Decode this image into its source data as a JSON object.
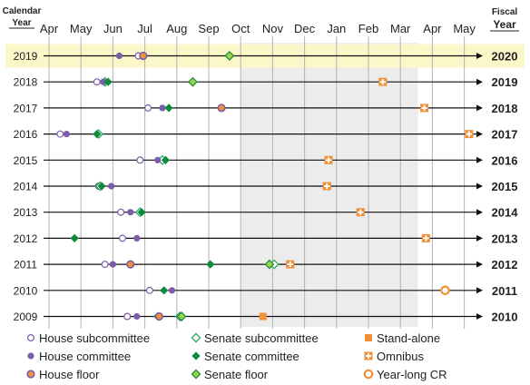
{
  "chart_data": {
    "type": "scatter",
    "left_header": [
      "Calendar",
      "Year"
    ],
    "right_header": [
      "Fiscal",
      "Year"
    ],
    "months": [
      "Apr",
      "May",
      "Jun",
      "Jul",
      "Aug",
      "Sep",
      "Oct",
      "Nov",
      "Dec",
      "Jan",
      "Feb",
      "Mar",
      "Apr",
      "May"
    ],
    "rows": [
      {
        "cal": "2019",
        "fy": "2020",
        "highlight": true
      },
      {
        "cal": "2018",
        "fy": "2019"
      },
      {
        "cal": "2017",
        "fy": "2018"
      },
      {
        "cal": "2016",
        "fy": "2017"
      },
      {
        "cal": "2015",
        "fy": "2016"
      },
      {
        "cal": "2014",
        "fy": "2015"
      },
      {
        "cal": "2013",
        "fy": "2014"
      },
      {
        "cal": "2012",
        "fy": "2013"
      },
      {
        "cal": "2011",
        "fy": "2012"
      },
      {
        "cal": "2010",
        "fy": "2011"
      },
      {
        "cal": "2009",
        "fy": "2010"
      }
    ],
    "series": [
      {
        "key": "hs",
        "name": "House subcommittee",
        "points": [
          {
            "row": "2019",
            "x": 2.8
          },
          {
            "row": "2018",
            "x": 1.5
          },
          {
            "row": "2017",
            "x": 3.1
          },
          {
            "row": "2016",
            "x": 0.35
          },
          {
            "row": "2015",
            "x": 2.85
          },
          {
            "row": "2014",
            "x": 1.55
          },
          {
            "row": "2013",
            "x": 2.25
          },
          {
            "row": "2012",
            "x": 2.3
          },
          {
            "row": "2011",
            "x": 1.75
          },
          {
            "row": "2010",
            "x": 3.15
          },
          {
            "row": "2009",
            "x": 2.45
          }
        ]
      },
      {
        "key": "ss",
        "name": "Senate subcommittee",
        "points": [
          {
            "row": "2018",
            "x": 1.75
          },
          {
            "row": "2016",
            "x": 1.55
          },
          {
            "row": "2015",
            "x": 3.55
          },
          {
            "row": "2014",
            "x": 1.6
          },
          {
            "row": "2013",
            "x": 2.85
          },
          {
            "row": "2011",
            "x": 7.05
          },
          {
            "row": "2009",
            "x": 4.1
          }
        ]
      },
      {
        "key": "hc",
        "name": "House committee",
        "points": [
          {
            "row": "2019",
            "x": 2.2
          },
          {
            "row": "2018",
            "x": 1.7
          },
          {
            "row": "2017",
            "x": 3.55
          },
          {
            "row": "2016",
            "x": 0.55
          },
          {
            "row": "2015",
            "x": 3.4
          },
          {
            "row": "2014",
            "x": 1.95
          },
          {
            "row": "2013",
            "x": 2.55
          },
          {
            "row": "2012",
            "x": 2.75
          },
          {
            "row": "2011",
            "x": 2.0
          },
          {
            "row": "2010",
            "x": 3.85
          },
          {
            "row": "2009",
            "x": 2.75
          }
        ]
      },
      {
        "key": "sc",
        "name": "Senate committee",
        "points": [
          {
            "row": "2018",
            "x": 1.85
          },
          {
            "row": "2017",
            "x": 3.75
          },
          {
            "row": "2016",
            "x": 1.5
          },
          {
            "row": "2015",
            "x": 3.65
          },
          {
            "row": "2014",
            "x": 1.65
          },
          {
            "row": "2013",
            "x": 2.9
          },
          {
            "row": "2012",
            "x": 0.8
          },
          {
            "row": "2011",
            "x": 5.05
          },
          {
            "row": "2010",
            "x": 3.6
          },
          {
            "row": "2009",
            "x": 3.4
          }
        ]
      },
      {
        "key": "hf",
        "name": "House floor",
        "points": [
          {
            "row": "2019",
            "x": 2.95
          },
          {
            "row": "2017",
            "x": 5.4
          },
          {
            "row": "2011",
            "x": 2.55
          },
          {
            "row": "2009",
            "x": 3.45
          }
        ]
      },
      {
        "key": "sf",
        "name": "Senate floor",
        "points": [
          {
            "row": "2019",
            "x": 5.65
          },
          {
            "row": "2018",
            "x": 4.5
          },
          {
            "row": "2011",
            "x": 6.9
          },
          {
            "row": "2009",
            "x": 4.15
          }
        ]
      },
      {
        "key": "sa",
        "name": "Stand-alone",
        "points": [
          {
            "row": "2009",
            "x": 6.7
          }
        ]
      },
      {
        "key": "om",
        "name": "Omnibus",
        "points": [
          {
            "row": "2018",
            "x": 10.45
          },
          {
            "row": "2017",
            "x": 11.75
          },
          {
            "row": "2016",
            "x": 13.15
          },
          {
            "row": "2015",
            "x": 8.75
          },
          {
            "row": "2014",
            "x": 8.7
          },
          {
            "row": "2013",
            "x": 9.75
          },
          {
            "row": "2012",
            "x": 11.8
          },
          {
            "row": "2011",
            "x": 7.55
          }
        ]
      },
      {
        "key": "cr",
        "name": "Year-long CR",
        "points": [
          {
            "row": "2010",
            "x": 12.4
          }
        ]
      }
    ],
    "x_range": [
      0,
      13.7
    ],
    "shaded_range": [
      "Oct",
      "Mar"
    ],
    "grid": true,
    "legend_position": "bottom"
  }
}
